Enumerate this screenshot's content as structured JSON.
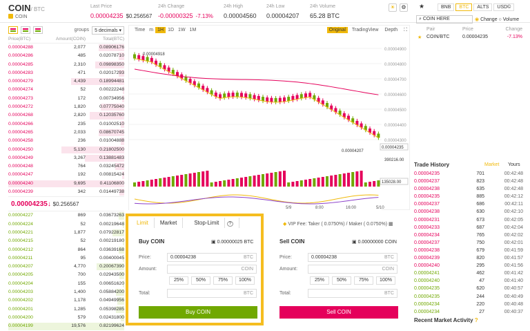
{
  "header": {
    "pair": "COIN",
    "quote": "/ BTC",
    "coin_label": "COIN",
    "stats": [
      {
        "label": "Last Price",
        "value": "0.00004235",
        "sub": "$0.256567",
        "color": "red"
      },
      {
        "label": "24h Change",
        "value": "-0.00000325",
        "sub": "-7.13%",
        "color": "red"
      },
      {
        "label": "24h High",
        "value": "0.00004560",
        "sub": "",
        "color": "none"
      },
      {
        "label": "24h Low",
        "value": "0.00004207",
        "sub": "",
        "color": "none"
      },
      {
        "label": "24h Volume",
        "value": "65.28 BTC",
        "sub": "",
        "color": "none"
      }
    ]
  },
  "orderbook": {
    "groups_label": "groups",
    "groups_value": "5 decimals",
    "col_price": "Price(BTC)",
    "col_amount": "Amount(COIN)",
    "col_total": "Total(BTC)",
    "asks": [
      [
        "0.00004288",
        "2,077",
        "0.08906176"
      ],
      [
        "0.00004286",
        "485",
        "0.02078710"
      ],
      [
        "0.00004285",
        "2,310",
        "0.09898350"
      ],
      [
        "0.00004283",
        "471",
        "0.02017293"
      ],
      [
        "0.00004279",
        "4,439",
        "0.18994481"
      ],
      [
        "0.00004274",
        "52",
        "0.00222248"
      ],
      [
        "0.00004273",
        "172",
        "0.00734956"
      ],
      [
        "0.00004272",
        "1,820",
        "0.07775040"
      ],
      [
        "0.00004268",
        "2,820",
        "0.12035760"
      ],
      [
        "0.00004266",
        "235",
        "0.01002510"
      ],
      [
        "0.00004265",
        "2,033",
        "0.08670745"
      ],
      [
        "0.00004258",
        "236",
        "0.01004888"
      ],
      [
        "0.00004250",
        "5,130",
        "0.21802500"
      ],
      [
        "0.00004249",
        "3,267",
        "0.13881483"
      ],
      [
        "0.00004248",
        "764",
        "0.03245472"
      ],
      [
        "0.00004247",
        "192",
        "0.00815424"
      ],
      [
        "0.00004240",
        "9,695",
        "0.41106800"
      ],
      [
        "0.00004239",
        "342",
        "0.01449738"
      ]
    ],
    "ask_depth": [
      0.22,
      0.05,
      0.25,
      0.05,
      0.46,
      0.01,
      0.02,
      0.2,
      0.3,
      0.03,
      0.22,
      0.03,
      0.54,
      0.34,
      0.08,
      0.02,
      1,
      0.04
    ],
    "last_price": "0.00004235",
    "last_arrow": "↓",
    "last_usd": "$0.256567",
    "bids": [
      [
        "0.00004227",
        "869",
        "0.03673263"
      ],
      [
        "0.00004224",
        "52",
        "0.00219648"
      ],
      [
        "0.00004221",
        "1,877",
        "0.07922817"
      ],
      [
        "0.00004215",
        "52",
        "0.00219180"
      ],
      [
        "0.00004212",
        "864",
        "0.03639168"
      ],
      [
        "0.00004211",
        "95",
        "0.00400045"
      ],
      [
        "0.00004207",
        "4,770",
        "0.20067390"
      ],
      [
        "0.00004205",
        "700",
        "0.02943500"
      ],
      [
        "0.00004204",
        "155",
        "0.00651620"
      ],
      [
        "0.00004203",
        "1,400",
        "0.05884200"
      ],
      [
        "0.00004202",
        "1,178",
        "0.04949956"
      ],
      [
        "0.00004201",
        "1,285",
        "0.05398285"
      ],
      [
        "0.00004200",
        "579",
        "0.02431800"
      ],
      [
        "0.00004199",
        "19,576",
        "0.82199624"
      ]
    ],
    "bid_depth": [
      0.05,
      0.01,
      0.1,
      0.01,
      0.05,
      0.01,
      0.24,
      0.04,
      0.01,
      0.07,
      0.06,
      0.07,
      0.03,
      1
    ]
  },
  "chart": {
    "toolbar": [
      "Time",
      "m",
      "1H",
      "1D",
      "1W",
      "1M"
    ],
    "active_interval": "1H",
    "view_original": "Original",
    "view_tradingview": "TradingView",
    "view_depth": "Depth",
    "y_labels": [
      "0.00004900",
      "0.00004800",
      "0.00004700",
      "0.00004600",
      "0.00004500",
      "0.00004400",
      "0.00004300"
    ],
    "high_marker": "0.00004918",
    "low_marker": "0.00004207",
    "last_marker": "0.00004235",
    "vol_label": "390216.00",
    "vol_marker": "135028.00",
    "x_labels": [
      "5/9",
      "8:00",
      "16:00",
      "5/10"
    ]
  },
  "form": {
    "tabs": [
      "Limit",
      "Market",
      "Stop-Limit"
    ],
    "vip": "VIP",
    "fee_text": "Fee: Taker ( 0.0750%) / Maker ( 0.0750%)",
    "buy": {
      "title": "Buy COIN",
      "balance": "0.00000025 BTC",
      "price": "0.00004238",
      "price_unit": "BTC",
      "amount_unit": "COIN",
      "total_unit": "BTC",
      "button": "Buy COIN"
    },
    "sell": {
      "title": "Sell COIN",
      "balance": "0.00000000 COIN",
      "price": "0.00004238",
      "price_unit": "BTC",
      "amount_unit": "COIN",
      "total_unit": "BTC",
      "button": "Sell COIN"
    },
    "price_label": "Price:",
    "amount_label": "Amount:",
    "total_label": "Total:",
    "pcts": [
      "25%",
      "50%",
      "75%",
      "100%"
    ]
  },
  "market": {
    "tabs": [
      "BNB",
      "BTC",
      "ALTS",
      "USD©"
    ],
    "active_tab": "BTC",
    "search_value": "COIN HERE",
    "radio_change": "Change",
    "radio_volume": "Volume",
    "col_pair": "Pair",
    "col_price": "Price",
    "col_change": "Change",
    "row": {
      "pair": "COIN/BTC",
      "price": "0.00004235",
      "change": "-7.13%"
    }
  },
  "trades": {
    "title": "Trade History",
    "tab_market": "Market",
    "tab_yours": "Yours",
    "rows": [
      [
        "0.00004235",
        "701",
        "00:42:48",
        "r"
      ],
      [
        "0.00004237",
        "823",
        "00:42:48",
        "r"
      ],
      [
        "0.00004238",
        "635",
        "00:42:48",
        "r"
      ],
      [
        "0.00004235",
        "885",
        "00:42:12",
        "r"
      ],
      [
        "0.00004237",
        "686",
        "00:42:11",
        "r"
      ],
      [
        "0.00004238",
        "630",
        "00:42:10",
        "r"
      ],
      [
        "0.00004231",
        "673",
        "00:42:05",
        "r"
      ],
      [
        "0.00004233",
        "687",
        "00:42:04",
        "r"
      ],
      [
        "0.00004234",
        "765",
        "00:42:02",
        "r"
      ],
      [
        "0.00004237",
        "750",
        "00:42:01",
        "r"
      ],
      [
        "0.00004238",
        "679",
        "00:41:59",
        "r"
      ],
      [
        "0.00004239",
        "820",
        "00:41:57",
        "r"
      ],
      [
        "0.00004240",
        "295",
        "00:41:56",
        "r"
      ],
      [
        "0.00004241",
        "462",
        "00:41:42",
        "g"
      ],
      [
        "0.00004240",
        "47",
        "00:41:40",
        "g"
      ],
      [
        "0.00004235",
        "620",
        "00:40:57",
        "g"
      ],
      [
        "0.00004235",
        "244",
        "00:40:49",
        "g"
      ],
      [
        "0.00004234",
        "220",
        "00:40:48",
        "g"
      ],
      [
        "0.00004234",
        "27",
        "00:40:37",
        "g"
      ]
    ],
    "recent_activity": "Recent Market Activity"
  }
}
